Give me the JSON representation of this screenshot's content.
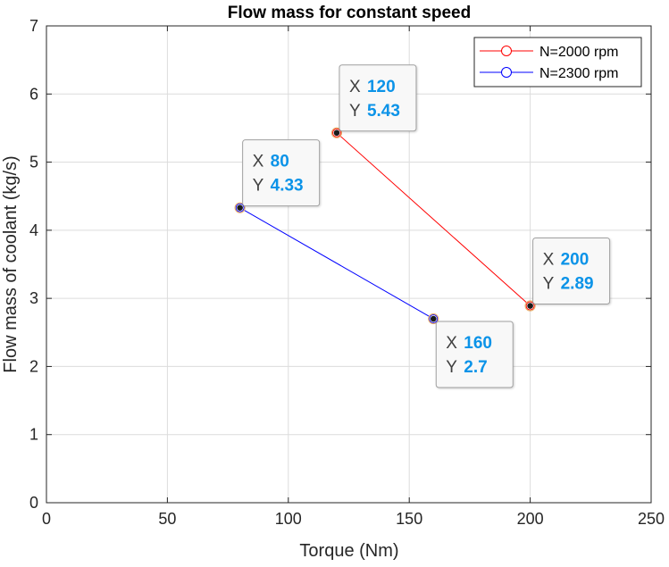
{
  "chart_data": {
    "type": "line",
    "title": "Flow mass for constant speed",
    "xlabel": "Torque (Nm)",
    "ylabel": "Flow mass of coolant (kg/s)",
    "xlim": [
      0,
      250
    ],
    "ylim": [
      0,
      7
    ],
    "xticks": [
      "0",
      "50",
      "100",
      "150",
      "200",
      "250"
    ],
    "yticks": [
      "0",
      "1",
      "2",
      "3",
      "4",
      "5",
      "6",
      "7"
    ],
    "grid": true,
    "legend_position": "top-right",
    "series": [
      {
        "name": "N=2000 rpm",
        "color": "#ff0000",
        "marker": "circle",
        "x": [
          120,
          200
        ],
        "y": [
          5.43,
          2.89
        ]
      },
      {
        "name": "N=2300 rpm",
        "color": "#0000ff",
        "marker": "circle",
        "x": [
          80,
          160
        ],
        "y": [
          4.33,
          2.7
        ]
      }
    ],
    "datatips": [
      {
        "x_label": "X",
        "x_value": "120",
        "y_label": "Y",
        "y_value": "5.43",
        "anchor_x": 120,
        "anchor_y": 5.43,
        "placement": "above-right"
      },
      {
        "x_label": "X",
        "x_value": "200",
        "y_label": "Y",
        "y_value": "2.89",
        "anchor_x": 200,
        "anchor_y": 2.89,
        "placement": "above-right"
      },
      {
        "x_label": "X",
        "x_value": "80",
        "y_label": "Y",
        "y_value": "4.33",
        "anchor_x": 80,
        "anchor_y": 4.33,
        "placement": "above-right"
      },
      {
        "x_label": "X",
        "x_value": "160",
        "y_label": "Y",
        "y_value": "2.7",
        "anchor_x": 160,
        "anchor_y": 2.7,
        "placement": "below-right"
      }
    ],
    "colors": {
      "axis": "#262626",
      "grid": "#dcdcdc",
      "datatip_value": "#0b93e8",
      "datatip_label": "#404040",
      "datatip_border": "#a0a0a0",
      "datatip_bg": "#f8f8f8"
    }
  }
}
